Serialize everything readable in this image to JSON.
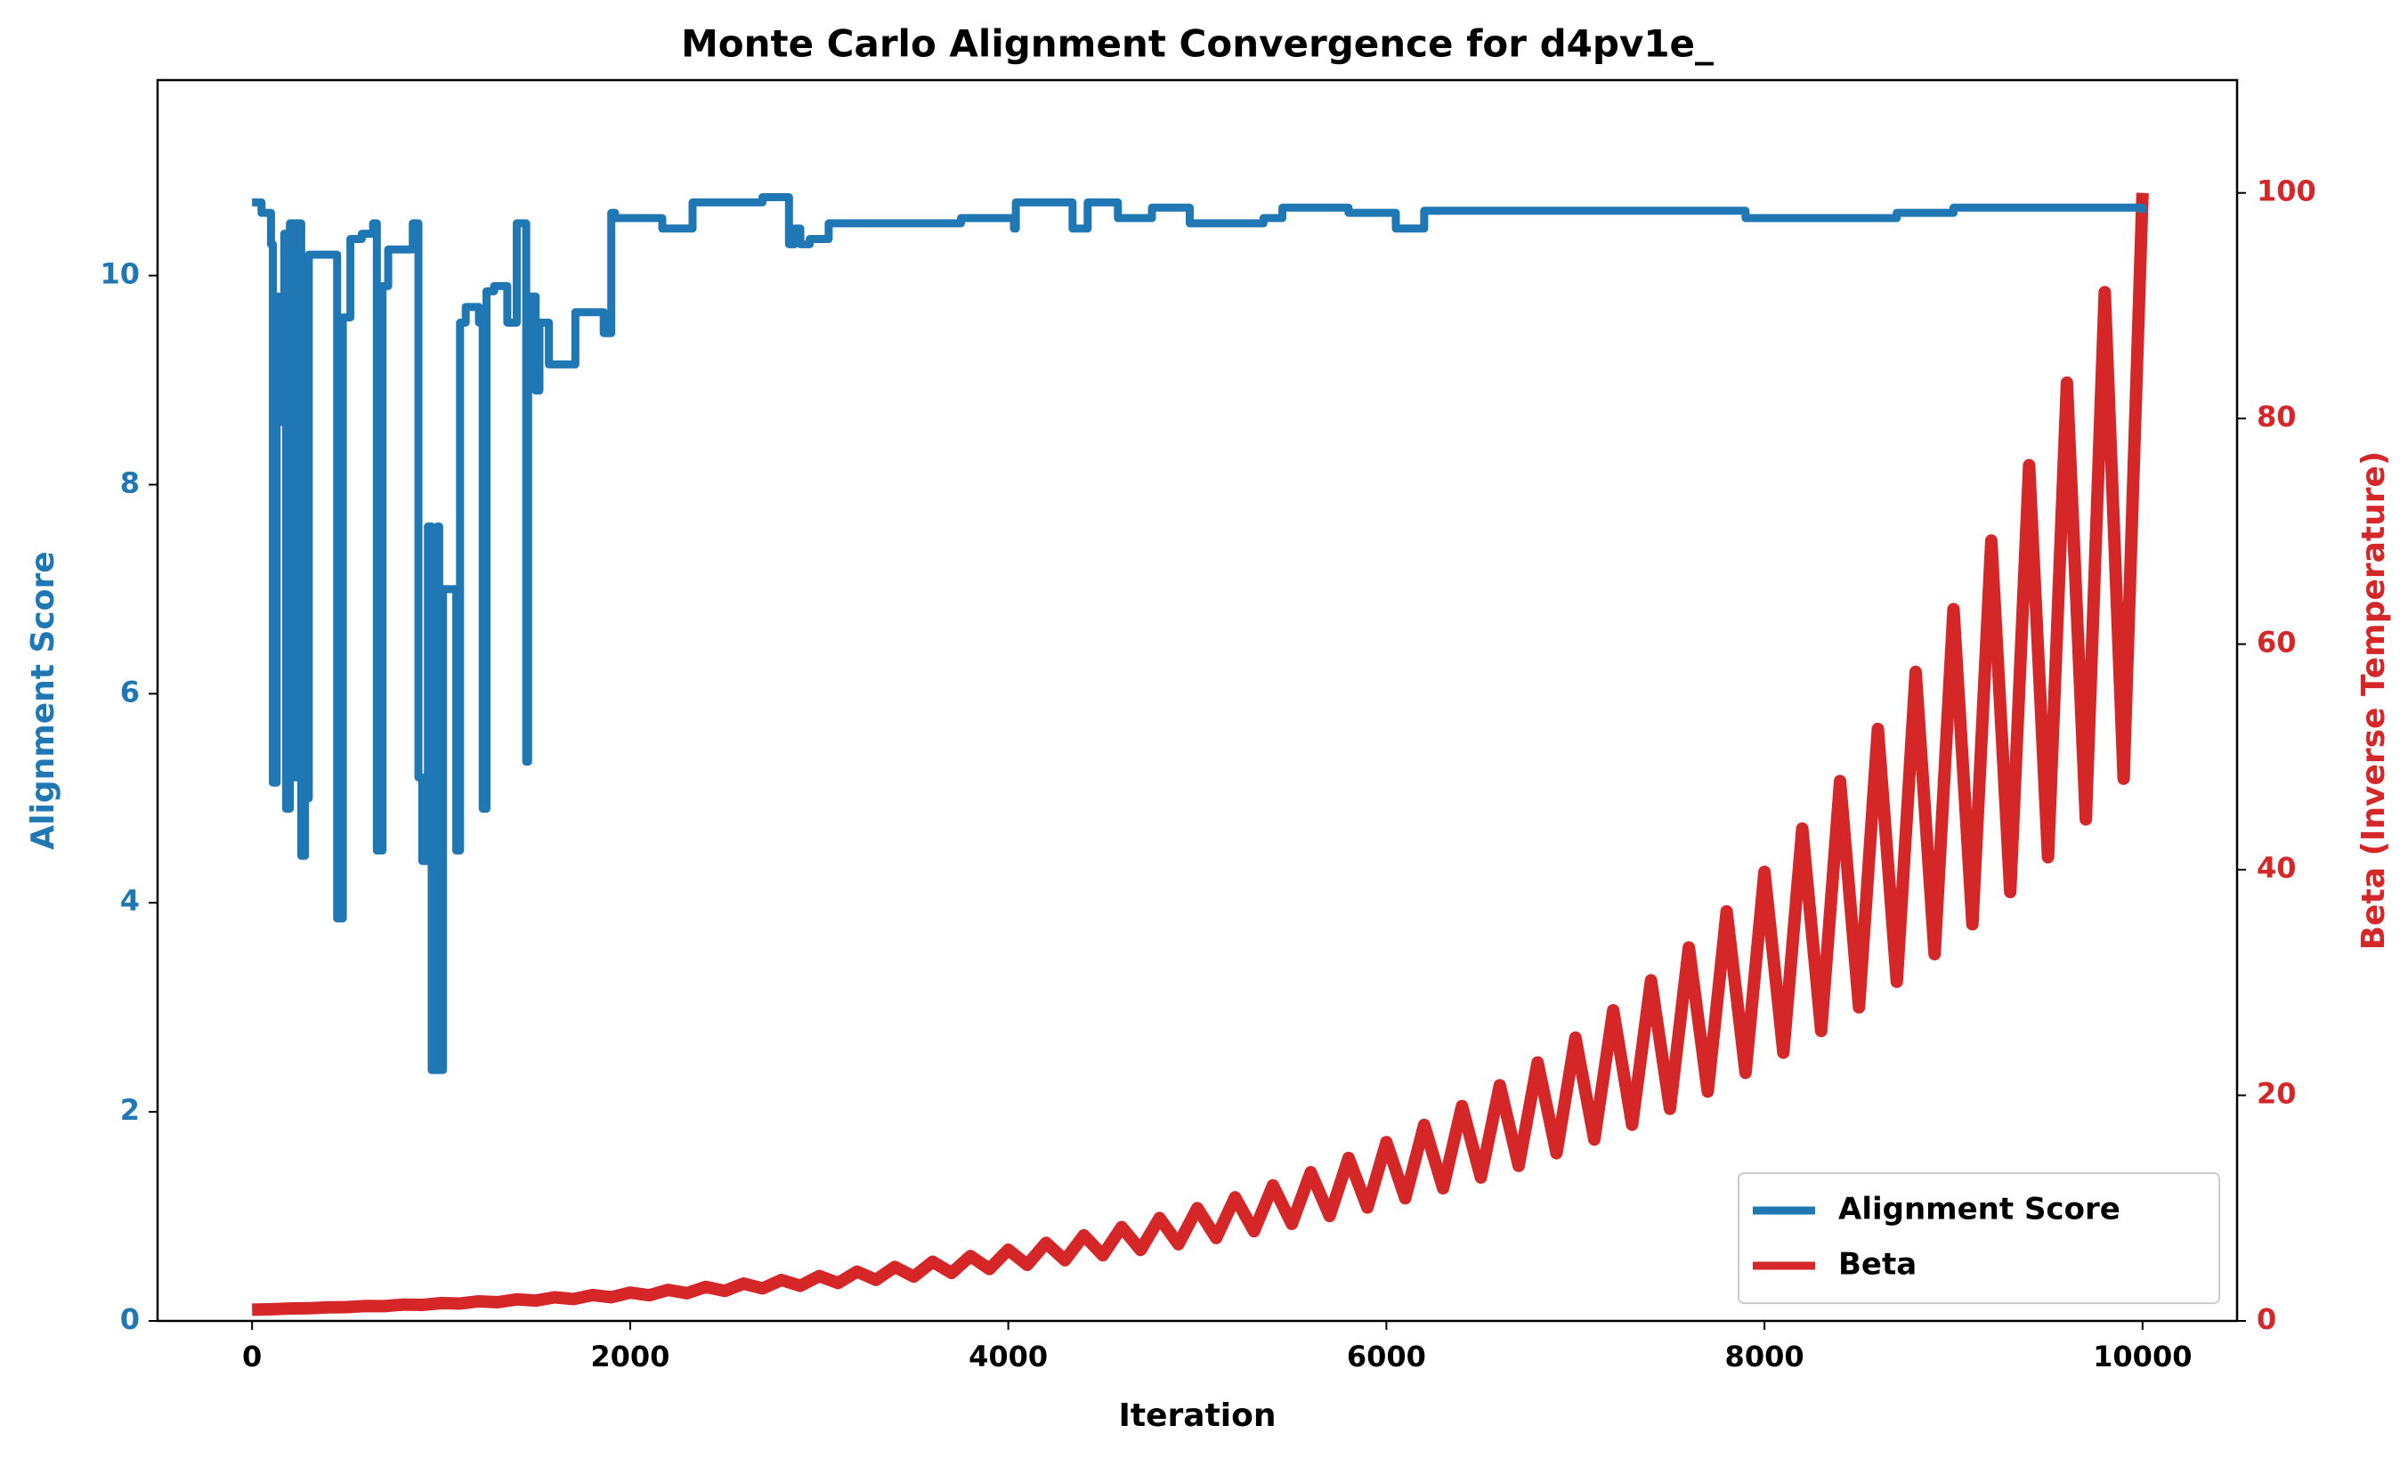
{
  "chart_data": {
    "type": "line",
    "title": "Monte Carlo Alignment Convergence for d4pv1e_",
    "xlabel": "Iteration",
    "ylabel": "Alignment Score",
    "y2label": "Beta (Inverse Temperature)",
    "xlim": [
      -500,
      10500
    ],
    "xticks": [
      0,
      2000,
      4000,
      6000,
      8000,
      10000
    ],
    "ylim": [
      0,
      11.87
    ],
    "yticks": [
      0,
      2,
      4,
      6,
      8,
      10
    ],
    "y2lim": [
      0,
      110
    ],
    "y2ticks": [
      0,
      20,
      40,
      60,
      80,
      100
    ],
    "legend": "lower right",
    "series": [
      {
        "name": "Alignment Score",
        "color": "#1f77b4",
        "axis": "y",
        "step": "post",
        "x": [
          0,
          50,
          100,
          110,
          130,
          140,
          170,
          180,
          200,
          220,
          230,
          260,
          280,
          300,
          450,
          480,
          520,
          580,
          640,
          660,
          690,
          720,
          850,
          880,
          900,
          930,
          950,
          980,
          990,
          1010,
          1080,
          1100,
          1130,
          1200,
          1220,
          1240,
          1280,
          1350,
          1400,
          1450,
          1460,
          1500,
          1520,
          1570,
          1710,
          1860,
          1900,
          1920,
          2170,
          2330,
          2700,
          2840,
          2870,
          2900,
          2950,
          3050,
          3750,
          4030,
          4040,
          4340,
          4420,
          4580,
          4760,
          4960,
          5100,
          5350,
          5450,
          5800,
          6050,
          6200,
          7900,
          8700,
          9000,
          10000
        ],
        "values": [
          10.7,
          10.6,
          10.3,
          5.15,
          9.8,
          8.6,
          10.4,
          4.9,
          10.5,
          5.2,
          10.5,
          4.45,
          5.0,
          10.2,
          3.85,
          9.6,
          10.35,
          10.4,
          10.5,
          4.5,
          9.9,
          10.25,
          10.5,
          5.2,
          4.4,
          7.6,
          2.4,
          7.6,
          2.4,
          7.0,
          4.5,
          9.55,
          9.7,
          9.55,
          4.9,
          9.85,
          9.9,
          9.55,
          10.5,
          5.35,
          9.8,
          8.9,
          9.55,
          9.15,
          9.65,
          9.45,
          10.6,
          10.55,
          10.45,
          10.7,
          10.75,
          10.3,
          10.45,
          10.3,
          10.35,
          10.5,
          10.55,
          10.45,
          10.7,
          10.45,
          10.7,
          10.55,
          10.65,
          10.5,
          10.5,
          10.55,
          10.65,
          10.6,
          10.45,
          10.62,
          10.55,
          10.6,
          10.65,
          10.6
        ]
      },
      {
        "name": "Beta",
        "color": "#d62728",
        "axis": "y2",
        "x": [
          0,
          100,
          200,
          300,
          400,
          500,
          600,
          700,
          800,
          900,
          1000,
          1100,
          1200,
          1300,
          1400,
          1500,
          1600,
          1700,
          1800,
          1900,
          2000,
          2100,
          2200,
          2300,
          2400,
          2500,
          2600,
          2700,
          2800,
          2900,
          3000,
          3100,
          3200,
          3300,
          3400,
          3500,
          3600,
          3700,
          3800,
          3900,
          4000,
          4100,
          4200,
          4300,
          4400,
          4500,
          4600,
          4700,
          4800,
          4900,
          5000,
          5100,
          5200,
          5300,
          5400,
          5500,
          5600,
          5700,
          5800,
          5900,
          6000,
          6100,
          6200,
          6300,
          6400,
          6500,
          6600,
          6700,
          6800,
          6900,
          7000,
          7100,
          7200,
          7300,
          7400,
          7500,
          7600,
          7700,
          7800,
          7900,
          8000,
          8100,
          8200,
          8300,
          8400,
          8500,
          8600,
          8700,
          8800,
          8900,
          9000,
          9100,
          9200,
          9300,
          9400,
          9500,
          9600,
          9700,
          9800,
          9900,
          10000
        ],
        "values": [
          1,
          1.04,
          1.1,
          1.12,
          1.2,
          1.22,
          1.32,
          1.31,
          1.45,
          1.42,
          1.58,
          1.54,
          1.74,
          1.66,
          1.91,
          1.8,
          2.09,
          1.94,
          2.29,
          2.1,
          2.51,
          2.27,
          2.75,
          2.46,
          3.02,
          2.66,
          3.31,
          2.88,
          3.63,
          3.11,
          3.98,
          3.36,
          4.37,
          3.64,
          4.79,
          3.93,
          5.25,
          4.25,
          5.75,
          4.6,
          6.31,
          4.97,
          6.92,
          5.38,
          7.59,
          5.82,
          8.32,
          6.29,
          9.12,
          6.8,
          10.0,
          7.35,
          10.96,
          7.95,
          12.02,
          8.6,
          13.18,
          9.3,
          14.45,
          10.05,
          15.85,
          10.87,
          17.38,
          11.76,
          19.05,
          12.72,
          20.89,
          13.75,
          22.91,
          14.87,
          25.12,
          16.08,
          27.54,
          17.39,
          30.2,
          18.8,
          33.11,
          20.33,
          36.31,
          21.99,
          39.81,
          23.78,
          43.65,
          25.71,
          47.86,
          27.8,
          52.48,
          30.07,
          57.54,
          32.51,
          63.1,
          35.16,
          69.18,
          38.02,
          75.86,
          41.11,
          83.18,
          44.46,
          91.2,
          48.07,
          100
        ]
      }
    ]
  }
}
